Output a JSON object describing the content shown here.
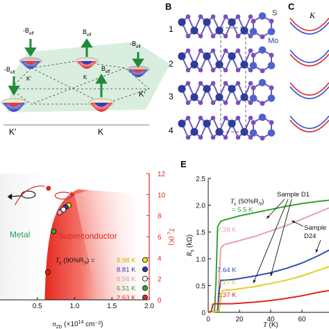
{
  "figure": {
    "panel_labels": {
      "b": "B",
      "c": "C",
      "e": "E"
    },
    "panel_a": {
      "field_labels": {
        "neg": "-B",
        "pos": "B",
        "sub": "eff"
      },
      "valley_labels": {
        "k": "K",
        "kp": "K′"
      }
    },
    "panel_b": {
      "layer_numbers": [
        "1",
        "2",
        "3",
        "4"
      ],
      "atom_labels": {
        "s": "S",
        "mo": "Mo"
      },
      "colors": {
        "mo": "#2d3d9e",
        "s": "#7b4fbd",
        "mo_light": "#4e63cf"
      }
    },
    "panel_c": {
      "title": "K",
      "colors": {
        "red": "#e03b3b",
        "blue": "#3f5fd0"
      }
    },
    "panel_d": {
      "region_metal": "Metal",
      "region_sc": "Superconductor",
      "legend_title_pre": "T",
      "legend_title_sub": "c",
      "legend_title_post": " (90%R",
      "legend_title_sub2": "N",
      "legend_title_end": ") =",
      "xlabel_pre": "n",
      "xlabel_sub": "2D",
      "xlabel_post": " (×10",
      "xlabel_sup": "14",
      "xlabel_end": " cm⁻²)",
      "ylabel_pre": "T",
      "ylabel_sub": "c",
      "ylabel_post": " (K)",
      "colors": {
        "axis": "#e0261e",
        "metal": "#24a05a",
        "sc": "#e0261e"
      }
    },
    "panel_e": {
      "xlabel_pre": "T",
      "xlabel_post": " (K)",
      "ylabel_pre": "R",
      "ylabel_sub": "s",
      "ylabel_post": " (kΩ)",
      "ann_tc_pre": "T",
      "ann_tc_sub": "c",
      "ann_tc_mid": " (50%R",
      "ann_tc_sub2": "N",
      "ann_tc_end": ")",
      "ann_tc_value": "= 5.5 K",
      "ann_d1": "Sample D1",
      "ann_d24_a": "Sample",
      "ann_d24_b": "D24"
    }
  },
  "chart_data": [
    {
      "type": "scatter",
      "panel": "D",
      "xlabel": "n2D (×10^14 cm^-2)",
      "ylabel": "Tc (K)",
      "xlim": [
        0,
        2.0
      ],
      "ylim": [
        0,
        12
      ],
      "xticks": [
        "0.5",
        "1.0",
        "1.5",
        "2.0"
      ],
      "yticks": [
        "0",
        "2",
        "4",
        "6",
        "8",
        "10",
        "12"
      ],
      "legend_placement": "lower-right",
      "points": [
        {
          "x": 0.92,
          "y": 8.98,
          "color": "#e8e820"
        },
        {
          "x": 0.88,
          "y": 8.81,
          "color": "#2d3d9e"
        },
        {
          "x": 0.85,
          "y": 8.58,
          "color": "#ffffff"
        },
        {
          "x": 0.8,
          "y": 8.3,
          "color": "#e8a0b0"
        },
        {
          "x": 0.72,
          "y": 6.51,
          "color": "#36a136"
        },
        {
          "x": 0.64,
          "y": 2.63,
          "color": "#e0261e"
        }
      ],
      "legend": [
        {
          "label": "8.98 K",
          "color": "#c9b400",
          "marker": "#e8e820"
        },
        {
          "label": "8.81 K",
          "color": "#2d3d9e",
          "marker": "#2d3d9e"
        },
        {
          "label": "8.58 K",
          "color": "#cc9fb0",
          "marker": "#ffffff"
        },
        {
          "label": "6.51 K",
          "color": "#36a136",
          "marker": "#36a136"
        },
        {
          "label": "2.63 K",
          "color": "#e0261e",
          "marker": "#e0261e"
        }
      ],
      "hysteresis_marker": {
        "x": 0.65,
        "y": 10.6,
        "color": "#e0261e"
      }
    },
    {
      "type": "line",
      "panel": "E",
      "xlabel": "T (K)",
      "ylabel": "Rs (kΩ)",
      "xlim": [
        0,
        80
      ],
      "ylim": [
        0,
        2.5
      ],
      "xticks": [
        "0",
        "20",
        "40",
        "60",
        "80"
      ],
      "yticks": [
        "0",
        "0.5",
        "1.0",
        "1.5",
        "2.0",
        "2.5"
      ],
      "tick_labels_visible_x": [
        "0",
        "20",
        "40",
        "60"
      ],
      "series": [
        {
          "label": "= 5.5 K",
          "color": "#36a136",
          "tc": 5.5,
          "x": [
            0,
            4,
            5,
            6,
            8,
            10,
            15,
            20,
            30,
            40,
            50,
            60,
            70,
            80
          ],
          "y": [
            0.0,
            0.02,
            0.6,
            1.6,
            1.7,
            1.72,
            1.76,
            1.8,
            1.86,
            1.92,
            1.98,
            2.03,
            2.07,
            2.1
          ]
        },
        {
          "label": "7.38 K",
          "color": "#e8a0b0",
          "tc": 7.38,
          "x": [
            0,
            6,
            7,
            8,
            10,
            15,
            20,
            30,
            40,
            50,
            60,
            70,
            80
          ],
          "y": [
            0.0,
            0.02,
            0.6,
            1.2,
            1.26,
            1.3,
            1.34,
            1.42,
            1.52,
            1.62,
            1.74,
            1.86,
            1.98
          ]
        },
        {
          "label": "7.64 K",
          "color": "#2d4fb0",
          "tc": 7.64,
          "x": [
            0,
            6,
            7,
            8,
            10,
            15,
            20,
            30,
            40,
            50,
            60,
            70,
            80
          ],
          "y": [
            0.0,
            0.02,
            0.4,
            0.6,
            0.6,
            0.61,
            0.63,
            0.68,
            0.74,
            0.82,
            0.92,
            1.05,
            1.2
          ]
        },
        {
          "label": "8.17 K",
          "color": "#e0d020",
          "tc": 8.17,
          "x": [
            0,
            7,
            8,
            9,
            10,
            15,
            20,
            30,
            40,
            50,
            60,
            70,
            80
          ],
          "y": [
            0.0,
            0.02,
            0.25,
            0.4,
            0.41,
            0.42,
            0.44,
            0.48,
            0.54,
            0.6,
            0.68,
            0.78,
            0.88
          ]
        },
        {
          "label": "2.37 K",
          "color": "#e0261e",
          "tc": 2.37,
          "x": [
            0,
            2,
            3,
            4,
            8,
            15,
            20,
            30,
            40,
            50,
            60,
            70,
            80
          ],
          "y": [
            0.0,
            0.02,
            0.15,
            0.16,
            0.16,
            0.16,
            0.17,
            0.19,
            0.22,
            0.26,
            0.31,
            0.37,
            0.42
          ]
        }
      ]
    }
  ]
}
